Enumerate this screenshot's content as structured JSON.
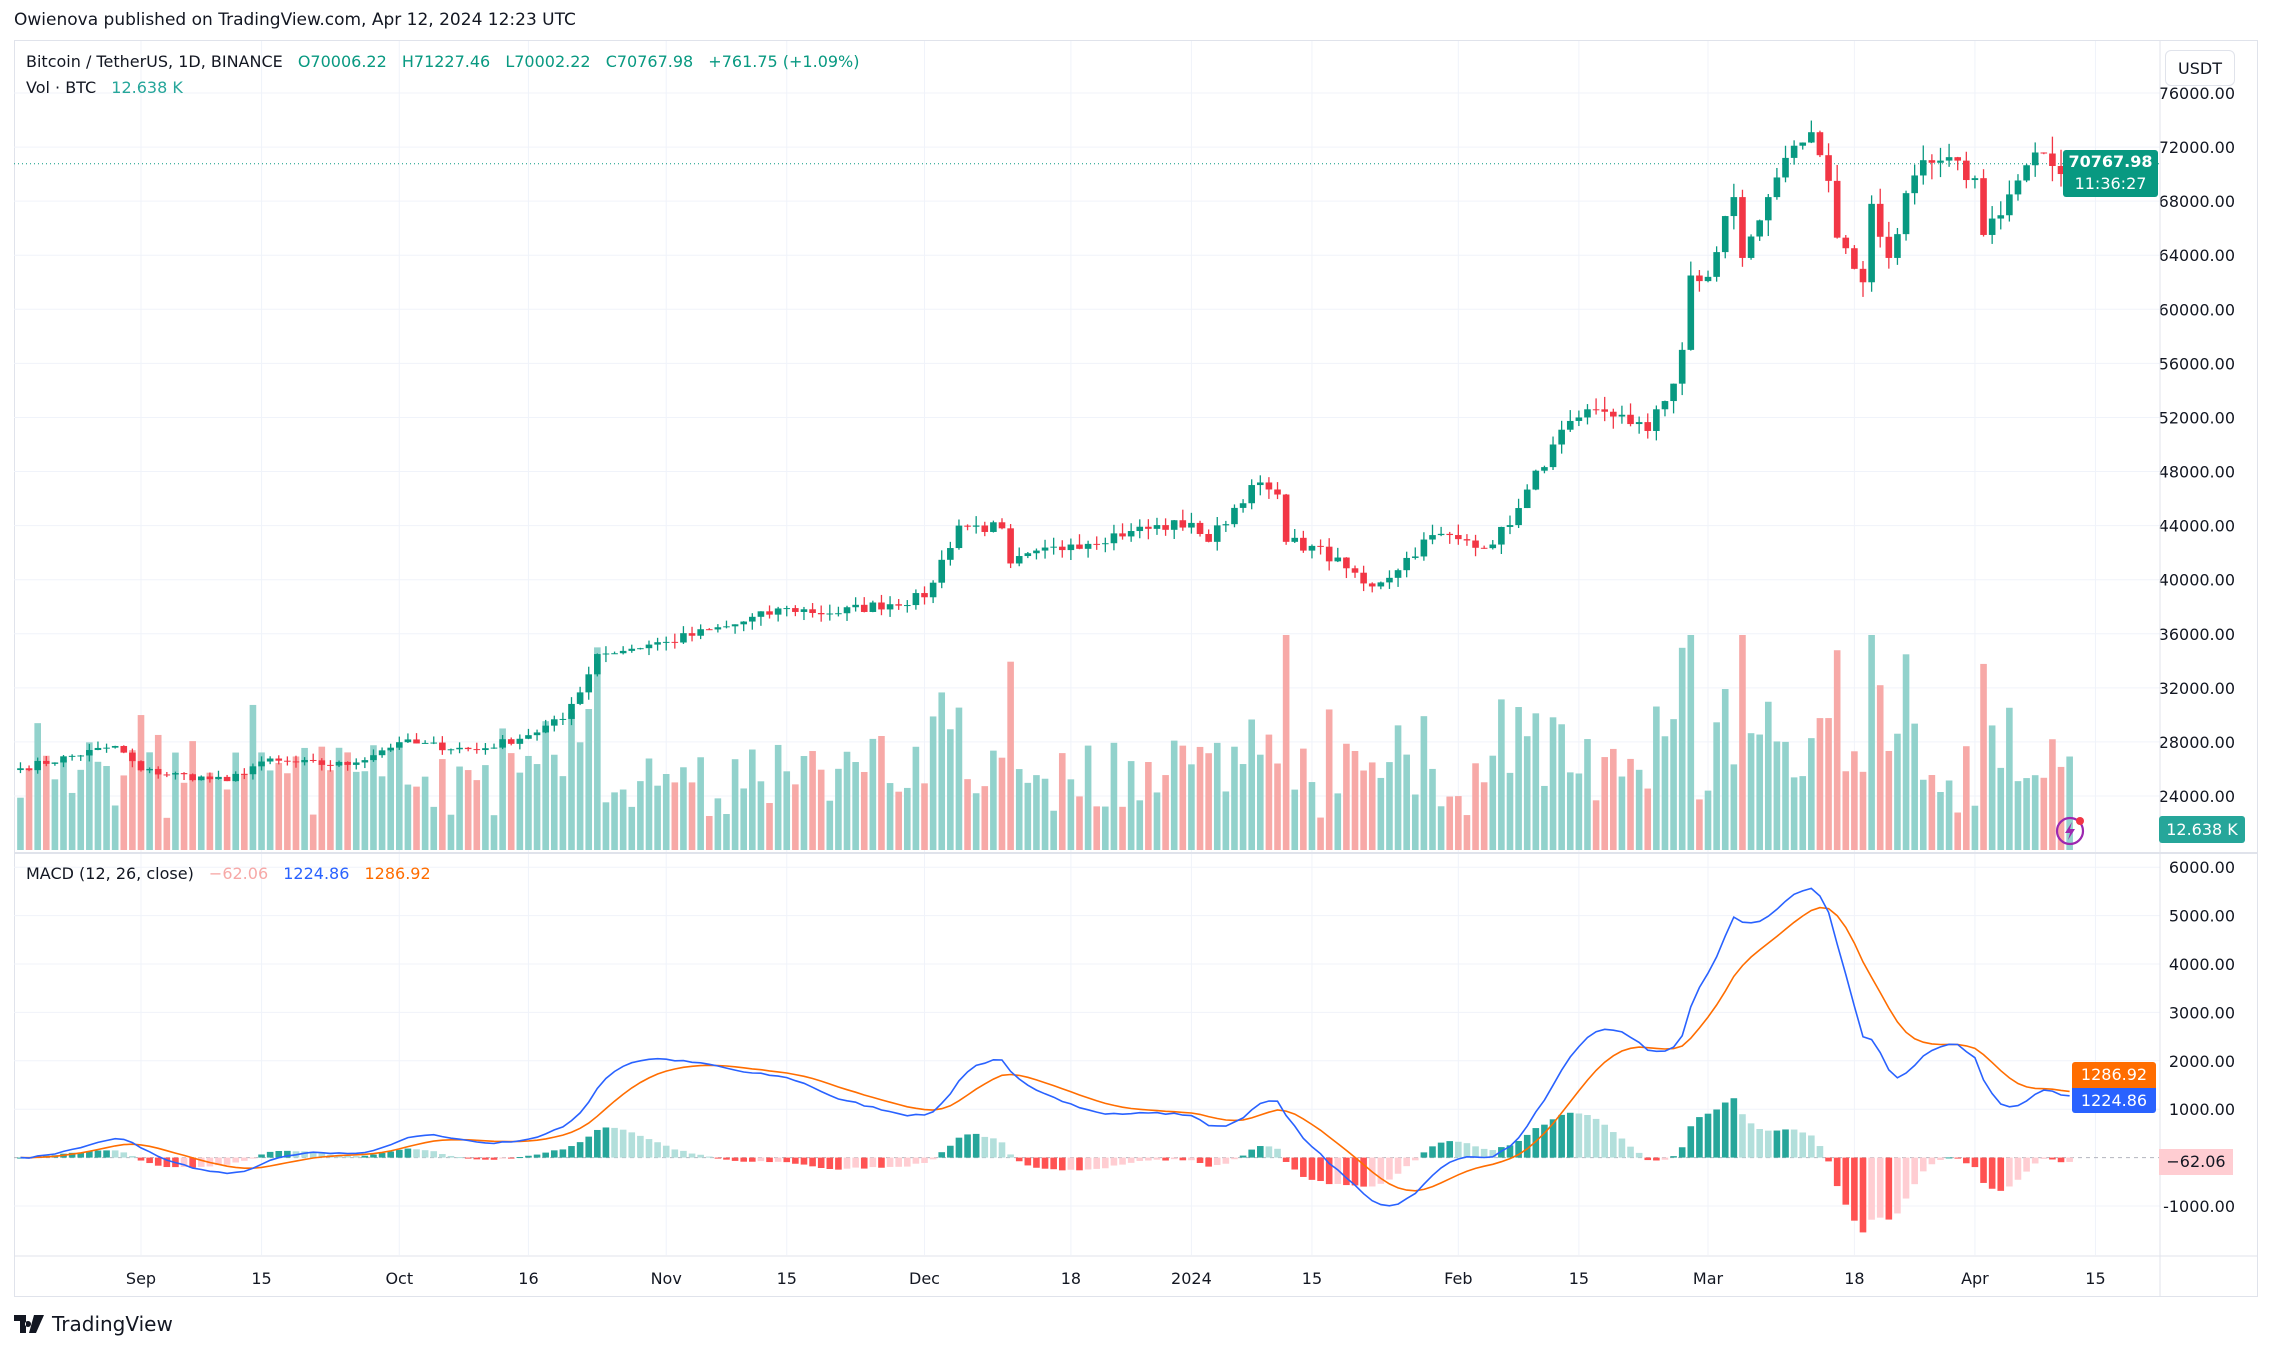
{
  "publisher_line": "Owienova published on TradingView.com, Apr 12, 2024 12:23 UTC",
  "symbol_line": {
    "title": "Bitcoin / TetherUS, 1D, BINANCE",
    "open": "O70006.22",
    "high": "H71227.46",
    "low": "L70002.22",
    "close": "C70767.98",
    "change": "+761.75 (+1.09%)"
  },
  "volume_line": {
    "label": "Vol · BTC",
    "value": "12.638 K"
  },
  "macd_line": {
    "label": "MACD (12, 26, close)",
    "hist": "−62.06",
    "macd": "1224.86",
    "signal": "1286.92"
  },
  "currency_button": "USDT",
  "price_badge": {
    "price": "70767.98",
    "countdown": "11:36:27"
  },
  "volume_badge": "12.638 K",
  "macd_badges": {
    "signal": "1286.92",
    "macd": "1224.86",
    "hist": "−62.06"
  },
  "footer_brand": "TradingView",
  "colors": {
    "up": "#089981",
    "down": "#f23645",
    "vol_up": "#92d2cc",
    "vol_down": "#f7a9a7",
    "macd": "#2962ff",
    "signal": "#ff6d00",
    "grid": "#f0f3fa"
  },
  "chart_data": [
    {
      "type": "candlestick",
      "title": "Bitcoin / TetherUS, 1D, BINANCE",
      "x_range": [
        "2023-08-18",
        "2024-04-12"
      ],
      "ylim": [
        20000,
        78000
      ],
      "y_ticks": [
        "76000.00",
        "72000.00",
        "68000.00",
        "64000.00",
        "60000.00",
        "56000.00",
        "52000.00",
        "48000.00",
        "44000.00",
        "40000.00",
        "36000.00",
        "32000.00",
        "28000.00",
        "24000.00"
      ],
      "x_ticks": [
        {
          "date": "2023-09-01",
          "label": "Sep"
        },
        {
          "date": "2023-09-15",
          "label": "15"
        },
        {
          "date": "2023-10-01",
          "label": "Oct"
        },
        {
          "date": "2023-10-16",
          "label": "16"
        },
        {
          "date": "2023-11-01",
          "label": "Nov"
        },
        {
          "date": "2023-11-15",
          "label": "15"
        },
        {
          "date": "2023-12-01",
          "label": "Dec"
        },
        {
          "date": "2023-12-18",
          "label": "18"
        },
        {
          "date": "2024-01-01",
          "label": "2024"
        },
        {
          "date": "2024-01-15",
          "label": "15"
        },
        {
          "date": "2024-02-01",
          "label": "Feb"
        },
        {
          "date": "2024-02-15",
          "label": "15"
        },
        {
          "date": "2024-03-01",
          "label": "Mar"
        },
        {
          "date": "2024-03-18",
          "label": "18"
        },
        {
          "date": "2024-04-01",
          "label": "Apr"
        },
        {
          "date": "2024-04-15",
          "label": "15"
        }
      ],
      "close_points": [
        [
          "2023-08-18",
          26050
        ],
        [
          "2023-08-29",
          27700
        ],
        [
          "2023-09-01",
          25900
        ],
        [
          "2023-09-11",
          25100
        ],
        [
          "2023-09-15",
          26550
        ],
        [
          "2023-09-25",
          26300
        ],
        [
          "2023-10-01",
          27980
        ],
        [
          "2023-10-10",
          27400
        ],
        [
          "2023-10-16",
          28500
        ],
        [
          "2023-10-20",
          29700
        ],
        [
          "2023-10-23",
          33000
        ],
        [
          "2023-10-24",
          34500
        ],
        [
          "2023-11-01",
          35400
        ],
        [
          "2023-11-09",
          36700
        ],
        [
          "2023-11-15",
          37900
        ],
        [
          "2023-11-20",
          37500
        ],
        [
          "2023-12-01",
          38700
        ],
        [
          "2023-12-05",
          44000
        ],
        [
          "2023-12-10",
          43800
        ],
        [
          "2023-12-11",
          41200
        ],
        [
          "2023-12-18",
          42600
        ],
        [
          "2023-12-25",
          43600
        ],
        [
          "2024-01-01",
          44200
        ],
        [
          "2024-01-03",
          42800
        ],
        [
          "2024-01-08",
          47000
        ],
        [
          "2024-01-11",
          46300
        ],
        [
          "2024-01-12",
          42800
        ],
        [
          "2024-01-15",
          42500
        ],
        [
          "2024-01-22",
          39500
        ],
        [
          "2024-01-23",
          39800
        ],
        [
          "2024-01-29",
          43300
        ],
        [
          "2024-02-01",
          43000
        ],
        [
          "2024-02-05",
          42600
        ],
        [
          "2024-02-08",
          45300
        ],
        [
          "2024-02-12",
          50000
        ],
        [
          "2024-02-15",
          52000
        ],
        [
          "2024-02-20",
          52200
        ],
        [
          "2024-02-23",
          51000
        ],
        [
          "2024-02-26",
          54500
        ],
        [
          "2024-02-27",
          57000
        ],
        [
          "2024-02-28",
          62500
        ],
        [
          "2024-03-01",
          62400
        ],
        [
          "2024-03-04",
          68300
        ],
        [
          "2024-03-05",
          63800
        ],
        [
          "2024-03-08",
          68300
        ],
        [
          "2024-03-11",
          72100
        ],
        [
          "2024-03-13",
          73100
        ],
        [
          "2024-03-14",
          71400
        ],
        [
          "2024-03-15",
          69500
        ],
        [
          "2024-03-16",
          65300
        ],
        [
          "2024-03-19",
          62000
        ],
        [
          "2024-03-20",
          67800
        ],
        [
          "2024-03-22",
          63800
        ],
        [
          "2024-03-25",
          69900
        ],
        [
          "2024-03-28",
          71000
        ],
        [
          "2024-04-01",
          69700
        ],
        [
          "2024-04-02",
          65500
        ],
        [
          "2024-04-05",
          68500
        ],
        [
          "2024-04-08",
          71600
        ],
        [
          "2024-04-10",
          70600
        ],
        [
          "2024-04-11",
          70006.22
        ],
        [
          "2024-04-12",
          70767.98
        ]
      ],
      "last": {
        "open": 70006.22,
        "high": 71227.46,
        "low": 70002.22,
        "close": 70767.98
      }
    },
    {
      "type": "line",
      "title": "MACD (12, 26, close)",
      "ylim": [
        -1500,
        6300
      ],
      "y_ticks": [
        "6000.00",
        "5000.00",
        "4000.00",
        "3000.00",
        "2000.00",
        "1000.00",
        "-1000.00"
      ],
      "series": [
        {
          "name": "MACD",
          "last": 1224.86
        },
        {
          "name": "Signal",
          "last": 1286.92
        },
        {
          "name": "Histogram",
          "last": -62.06
        }
      ]
    }
  ]
}
